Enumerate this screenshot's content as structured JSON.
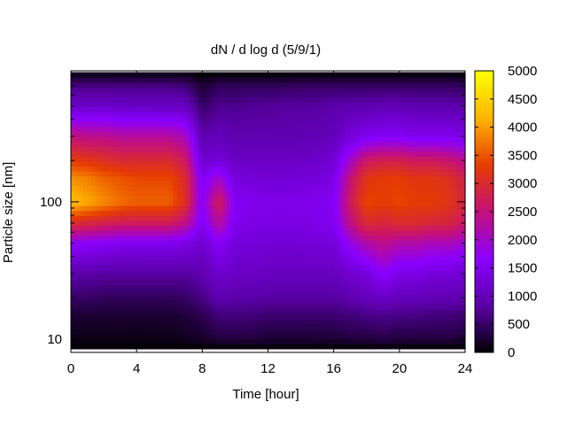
{
  "chart_data": {
    "type": "heatmap",
    "title": "dN / d log d (5/9/1)",
    "xlabel": "Time [hour]",
    "ylabel": "Particle size [nm]",
    "xlim": [
      0,
      24
    ],
    "ylim": [
      8,
      900
    ],
    "yscale": "log",
    "x_ticks": [
      0,
      4,
      8,
      12,
      16,
      20,
      24
    ],
    "y_ticks": [
      10,
      100
    ],
    "colorbar": {
      "range": [
        0,
        5000
      ],
      "ticks": [
        0,
        500,
        1000,
        1500,
        2000,
        2500,
        3000,
        3500,
        4000,
        4500,
        5000
      ],
      "colormap": [
        "#000000",
        "#5b00a8",
        "#8a00ff",
        "#c4107a",
        "#e63c00",
        "#ffb400",
        "#ffff00"
      ]
    },
    "time_hours": [
      0,
      1,
      2,
      3,
      4,
      5,
      6,
      7,
      8,
      9,
      10,
      11,
      12,
      13,
      14,
      15,
      16,
      17,
      18,
      19,
      20,
      21,
      22,
      23,
      24
    ],
    "size_nm": [
      8.5,
      10,
      15,
      20,
      30,
      50,
      70,
      100,
      150,
      200,
      300,
      500,
      700,
      880
    ],
    "values": [
      [
        0,
        100,
        250,
        500,
        850,
        1700,
        3000,
        4300,
        3900,
        3300,
        2500,
        1150,
        650,
        50
      ],
      [
        0,
        100,
        250,
        500,
        850,
        1650,
        2900,
        4100,
        3800,
        3200,
        2400,
        1150,
        650,
        50
      ],
      [
        0,
        100,
        250,
        450,
        800,
        1600,
        2800,
        3900,
        3600,
        3100,
        2400,
        1150,
        650,
        50
      ],
      [
        0,
        100,
        250,
        450,
        800,
        1500,
        2700,
        3700,
        3500,
        3000,
        2300,
        1100,
        650,
        50
      ],
      [
        0,
        100,
        250,
        450,
        800,
        1500,
        2700,
        3600,
        3400,
        3000,
        2300,
        1100,
        650,
        50
      ],
      [
        0,
        100,
        250,
        450,
        800,
        1500,
        2700,
        3600,
        3400,
        3000,
        2300,
        1100,
        650,
        50
      ],
      [
        0,
        100,
        250,
        450,
        800,
        1500,
        2700,
        3600,
        3400,
        3000,
        2300,
        1100,
        650,
        50
      ],
      [
        0,
        150,
        300,
        500,
        800,
        1400,
        2400,
        3100,
        3000,
        2700,
        2100,
        1050,
        600,
        50
      ],
      [
        0,
        200,
        400,
        650,
        900,
        1200,
        1500,
        1600,
        1500,
        1200,
        900,
        500,
        250,
        0
      ],
      [
        0,
        300,
        600,
        900,
        1200,
        1600,
        2300,
        2800,
        2000,
        1300,
        1000,
        700,
        450,
        0
      ],
      [
        0,
        300,
        600,
        850,
        1100,
        1300,
        1500,
        1550,
        1300,
        1100,
        900,
        700,
        450,
        0
      ],
      [
        0,
        300,
        600,
        850,
        1100,
        1300,
        1400,
        1500,
        1300,
        1100,
        900,
        750,
        450,
        0
      ],
      [
        0,
        250,
        550,
        800,
        1050,
        1250,
        1400,
        1450,
        1250,
        1100,
        900,
        750,
        450,
        0
      ],
      [
        0,
        250,
        550,
        800,
        1050,
        1250,
        1400,
        1450,
        1250,
        1100,
        900,
        800,
        450,
        0
      ],
      [
        0,
        250,
        550,
        800,
        1050,
        1250,
        1400,
        1450,
        1300,
        1100,
        950,
        800,
        500,
        0
      ],
      [
        0,
        250,
        550,
        800,
        1050,
        1300,
        1450,
        1500,
        1300,
        1150,
        950,
        800,
        500,
        0
      ],
      [
        0,
        250,
        550,
        800,
        1050,
        1300,
        1500,
        1550,
        1400,
        1250,
        1000,
        850,
        500,
        0
      ],
      [
        0,
        300,
        600,
        900,
        1200,
        1800,
        2400,
        2700,
        2500,
        2000,
        1300,
        900,
        500,
        0
      ],
      [
        0,
        300,
        650,
        1000,
        1300,
        2200,
        3000,
        3400,
        3200,
        2700,
        1500,
        900,
        500,
        0
      ],
      [
        0,
        350,
        700,
        1100,
        1700,
        2400,
        2900,
        3300,
        3300,
        2800,
        1600,
        950,
        500,
        0
      ],
      [
        0,
        300,
        650,
        1000,
        1400,
        2200,
        3000,
        3400,
        3300,
        2800,
        1600,
        950,
        500,
        0
      ],
      [
        0,
        300,
        650,
        1000,
        1400,
        2200,
        3000,
        3300,
        3200,
        2700,
        1500,
        900,
        500,
        0
      ],
      [
        0,
        300,
        600,
        950,
        1300,
        2100,
        2900,
        3300,
        3200,
        2700,
        1500,
        900,
        500,
        0
      ],
      [
        0,
        300,
        600,
        950,
        1300,
        2100,
        2900,
        3200,
        3100,
        2600,
        1500,
        900,
        500,
        0
      ],
      [
        0,
        250,
        550,
        900,
        1200,
        1900,
        2600,
        2900,
        2800,
        2400,
        1400,
        850,
        450,
        0
      ]
    ]
  }
}
